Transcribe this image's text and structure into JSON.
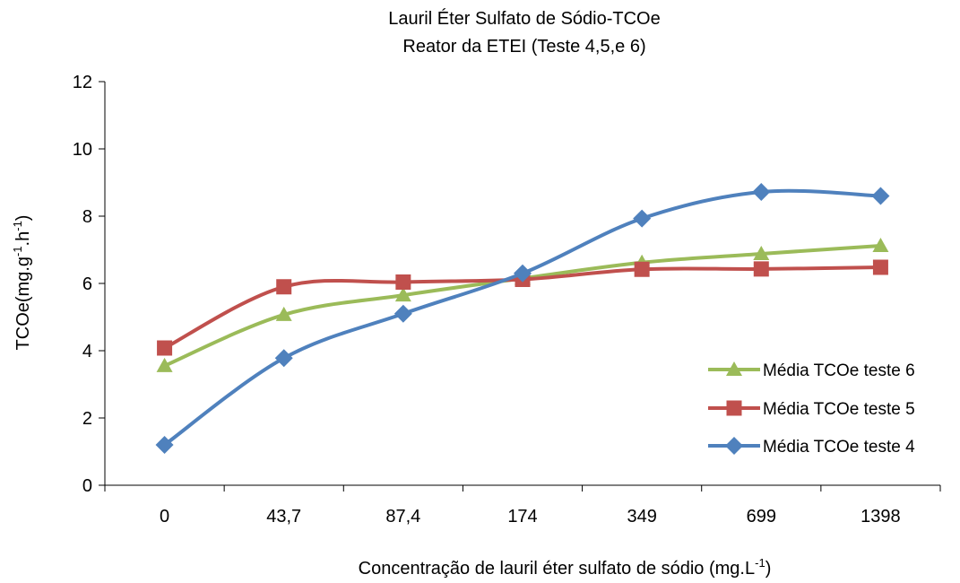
{
  "chart_data": {
    "type": "line",
    "title": "Lauril Éter Sulfato de Sódio-TCOe",
    "subtitle": "Reator da ETEI (Teste 4,5,e 6)",
    "xlabel": "Concentração de lauril éter sulfato de sódio (mg.L",
    "xlabel_sup": "-1",
    "xlabel_end": ")",
    "ylabel": "TCOe(mg.g",
    "ylabel_sup1": "-1",
    "ylabel_mid": ".h",
    "ylabel_sup2": "-1",
    "ylabel_end": ")",
    "categories": [
      "0",
      "43,7",
      "87,4",
      "174",
      "349",
      "699",
      "1398"
    ],
    "yticks": [
      "0",
      "2",
      "4",
      "6",
      "8",
      "10",
      "12"
    ],
    "ylim": [
      0,
      12
    ],
    "grid": false,
    "legend_position": "right",
    "smooth": true,
    "series": [
      {
        "name": "Média TCOe teste 6",
        "color": "#9BBB59",
        "marker": "triangle",
        "values": [
          3.55,
          5.07,
          5.65,
          6.15,
          6.62,
          6.88,
          7.12
        ]
      },
      {
        "name": "Média TCOe teste 5",
        "color": "#C0504D",
        "marker": "square",
        "values": [
          4.08,
          5.9,
          6.04,
          6.12,
          6.42,
          6.43,
          6.48
        ]
      },
      {
        "name": "Média TCOe teste 4",
        "color": "#4F81BD",
        "marker": "diamond",
        "values": [
          1.2,
          3.78,
          5.1,
          6.3,
          7.93,
          8.72,
          8.6
        ]
      }
    ]
  }
}
